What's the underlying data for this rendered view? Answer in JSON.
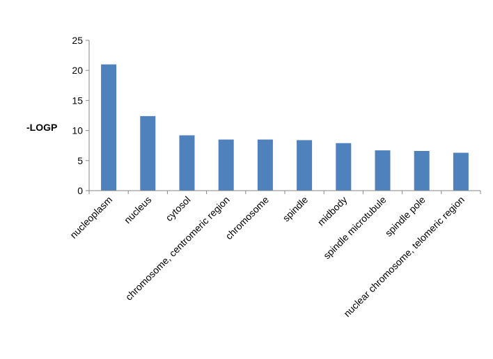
{
  "chart_data": {
    "type": "bar",
    "title": "",
    "xlabel": "",
    "ylabel": "-LOGP",
    "categories": [
      "nucleoplasm",
      "nucleus",
      "cytosol",
      "chromosome, centromeric region",
      "chromosome",
      "spindle",
      "midbody",
      "spindle microtubule",
      "spindle pole",
      "nuclear chromosome, telomeric region"
    ],
    "values": [
      21.0,
      12.4,
      9.2,
      8.5,
      8.5,
      8.4,
      7.9,
      6.7,
      6.6,
      6.3
    ],
    "ylim": [
      0,
      25
    ],
    "yticks": [
      0,
      5,
      10,
      15,
      20,
      25
    ],
    "grid": false,
    "legend": "none",
    "bar_color": "#4F81BD"
  }
}
